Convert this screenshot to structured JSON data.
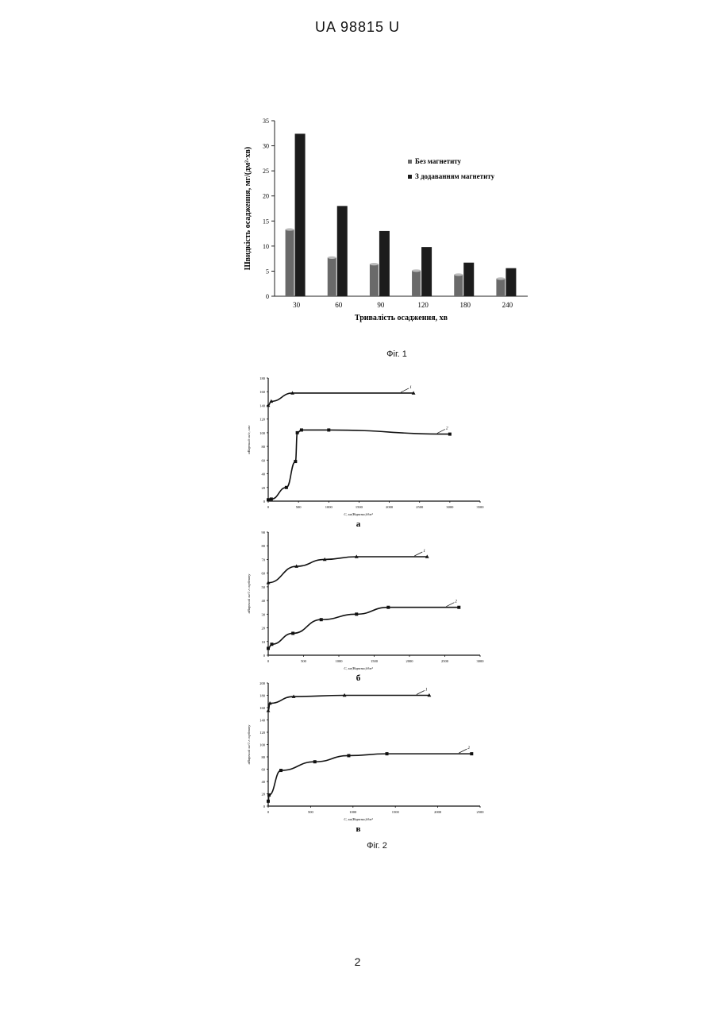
{
  "header": {
    "title": "UA   98815   U"
  },
  "page_number": "2",
  "figure1": {
    "caption": "Фіг. 1",
    "chart_data": {
      "type": "bar",
      "title": "",
      "xlabel": "Тривалість осадження, хв",
      "ylabel": "Швидкість осадження, мг/(дм²·хв)",
      "categories": [
        "30",
        "60",
        "90",
        "120",
        "180",
        "240"
      ],
      "ylim": [
        0,
        35
      ],
      "yticks": [
        "0",
        "5",
        "10",
        "15",
        "20",
        "25",
        "30",
        "35"
      ],
      "legend_position": "top-right",
      "colors": {
        "series1": "#6a6a6a",
        "series2": "#1c1c1c"
      },
      "series": [
        {
          "name": "Без магнетиту",
          "values": [
            13.3,
            7.7,
            6.4,
            5.1,
            4.3,
            3.5
          ]
        },
        {
          "name": "З додаванням магнетиту",
          "values": [
            32.4,
            18.0,
            13.0,
            9.8,
            6.7,
            5.6
          ]
        }
      ]
    }
  },
  "figure2": {
    "caption": "Фіг. 2",
    "charts": [
      {
        "label": "а",
        "ylabel": "αВарений мг/г, мкс",
        "xlabel": "С, мг(Виразно)/дм³",
        "xlim": [
          0,
          3500
        ],
        "ylim": [
          0,
          180
        ],
        "xticks": [
          "0",
          "500",
          "1000",
          "1500",
          "2000",
          "2500",
          "3000",
          "3500"
        ],
        "yticks": [
          "0",
          "20",
          "40",
          "60",
          "80",
          "100",
          "120",
          "140",
          "160",
          "180"
        ],
        "series": [
          {
            "label": "1",
            "marker": "triangle",
            "x": [
              0,
              50,
              400,
              2400
            ],
            "y": [
              140,
              146,
              158,
              158
            ]
          },
          {
            "label": "2",
            "marker": "square",
            "x": [
              0,
              50,
              300,
              450,
              480,
              550,
              1000,
              3000
            ],
            "y": [
              2,
              3,
              20,
              58,
              100,
              104,
              104,
              98
            ]
          }
        ]
      },
      {
        "label": "б",
        "ylabel": "αВарений мг/1 г сорбенту",
        "xlabel": "С, мг(Виразно)/дм³",
        "xlim": [
          0,
          3000
        ],
        "ylim": [
          0,
          90
        ],
        "xticks": [
          "0",
          "500",
          "1000",
          "1500",
          "2000",
          "2500",
          "3000"
        ],
        "yticks": [
          "0",
          "10",
          "20",
          "30",
          "40",
          "50",
          "60",
          "70",
          "80",
          "90"
        ],
        "series": [
          {
            "label": "1",
            "marker": "triangle",
            "x": [
              0,
              400,
              800,
              1250,
              2250
            ],
            "y": [
              53,
              65,
              70,
              72,
              72
            ]
          },
          {
            "label": "2",
            "marker": "square",
            "x": [
              0,
              50,
              350,
              750,
              1250,
              1700,
              2700
            ],
            "y": [
              5,
              8,
              16,
              26,
              30,
              35,
              35
            ]
          }
        ]
      },
      {
        "label": "в",
        "ylabel": "αВарений мг/1 г сорбенту",
        "xlabel": "С, мг(Виразно)/дм³",
        "xlim": [
          0,
          2500
        ],
        "ylim": [
          0,
          200
        ],
        "xticks": [
          "0",
          "500",
          "1000",
          "1500",
          "2000",
          "2500"
        ],
        "yticks": [
          "0",
          "20",
          "40",
          "60",
          "80",
          "100",
          "120",
          "140",
          "160",
          "180",
          "200"
        ],
        "series": [
          {
            "label": "1",
            "marker": "triangle",
            "x": [
              0,
              20,
              300,
              900,
              1900
            ],
            "y": [
              155,
              167,
              178,
              180,
              180
            ]
          },
          {
            "label": "2",
            "marker": "square",
            "x": [
              0,
              10,
              150,
              550,
              950,
              1400,
              2400
            ],
            "y": [
              8,
              18,
              58,
              72,
              82,
              85,
              85
            ]
          }
        ]
      }
    ]
  }
}
